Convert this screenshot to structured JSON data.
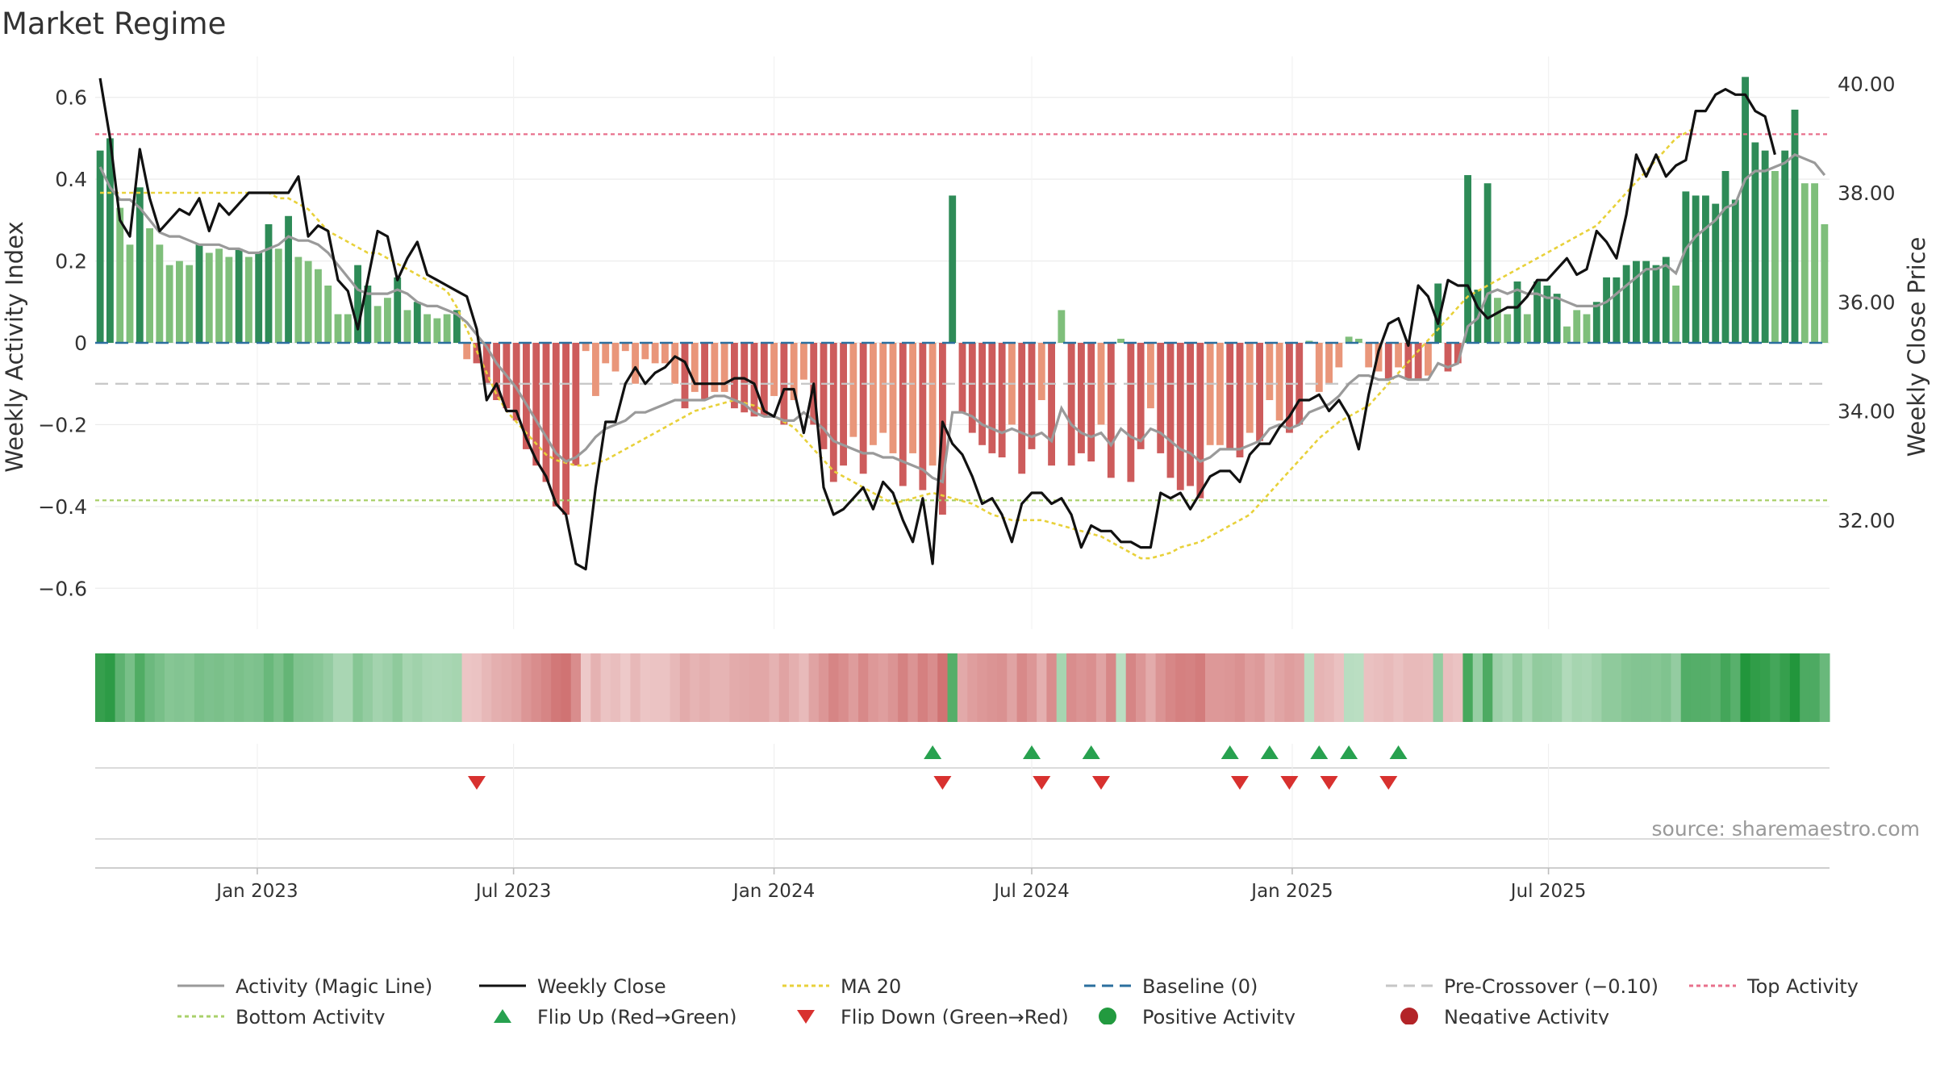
{
  "title": "Market Regime",
  "source": "source: sharemaestro.com",
  "chart_data": {
    "type": "bar+line",
    "title": "Market Regime",
    "x_start": "2022-09-12",
    "x_interval_days": 7,
    "x_ticks": [
      "Jan 2023",
      "Jul 2023",
      "Jan 2024",
      "Jul 2024",
      "Jan 2025",
      "Jul 2025"
    ],
    "left_axis": {
      "label": "Weekly Activity Index",
      "range": [
        -0.7,
        0.7
      ],
      "ticks": [
        -0.6,
        -0.4,
        -0.2,
        0,
        0.2,
        0.4,
        0.6
      ],
      "tick_labels": [
        "−0.6",
        "−0.4",
        "−0.2",
        "0",
        "0.2",
        "0.4",
        "0.6"
      ]
    },
    "right_axis": {
      "label": "Weekly Close Price",
      "range": [
        30.0,
        40.5
      ],
      "ticks": [
        32,
        34,
        36,
        38,
        40
      ],
      "tick_labels": [
        "32.00",
        "34.00",
        "36.00",
        "38.00",
        "40.00"
      ]
    },
    "activity": [
      0.47,
      0.5,
      0.33,
      0.24,
      0.38,
      0.28,
      0.24,
      0.19,
      0.2,
      0.19,
      0.24,
      0.22,
      0.23,
      0.21,
      0.23,
      0.21,
      0.22,
      0.29,
      0.23,
      0.31,
      0.21,
      0.2,
      0.18,
      0.14,
      0.07,
      0.07,
      0.19,
      0.14,
      0.09,
      0.11,
      0.16,
      0.08,
      0.1,
      0.07,
      0.06,
      0.07,
      0.08,
      -0.04,
      -0.05,
      -0.1,
      -0.14,
      -0.16,
      -0.19,
      -0.26,
      -0.3,
      -0.34,
      -0.4,
      -0.42,
      -0.3,
      -0.02,
      -0.13,
      -0.05,
      -0.07,
      -0.02,
      -0.1,
      -0.04,
      -0.05,
      -0.05,
      -0.1,
      -0.16,
      -0.12,
      -0.14,
      -0.12,
      -0.12,
      -0.16,
      -0.17,
      -0.18,
      -0.18,
      -0.13,
      -0.2,
      -0.14,
      -0.09,
      -0.2,
      -0.26,
      -0.34,
      -0.3,
      -0.23,
      -0.32,
      -0.25,
      -0.22,
      -0.27,
      -0.35,
      -0.27,
      -0.36,
      -0.3,
      -0.42,
      0.36,
      -0.17,
      -0.22,
      -0.25,
      -0.27,
      -0.28,
      -0.2,
      -0.32,
      -0.26,
      -0.14,
      -0.3,
      0.08,
      -0.3,
      -0.27,
      -0.29,
      -0.2,
      -0.33,
      0.01,
      -0.34,
      -0.26,
      -0.16,
      -0.27,
      -0.33,
      -0.36,
      -0.35,
      -0.38,
      -0.25,
      -0.25,
      -0.26,
      -0.28,
      -0.22,
      -0.24,
      -0.14,
      -0.19,
      -0.22,
      -0.2,
      0.005,
      -0.12,
      -0.1,
      -0.06,
      0.015,
      0.01,
      -0.06,
      -0.07,
      -0.09,
      -0.06,
      -0.09,
      -0.09,
      -0.08,
      0.145,
      -0.07,
      -0.05,
      0.41,
      0.13,
      0.39,
      0.11,
      0.07,
      0.15,
      0.07,
      0.15,
      0.14,
      0.12,
      0.04,
      0.08,
      0.07,
      0.1,
      0.16,
      0.16,
      0.19,
      0.2,
      0.2,
      0.19,
      0.21,
      0.14,
      0.37,
      0.36,
      0.36,
      0.34,
      0.42,
      0.35,
      0.65,
      0.49,
      0.47,
      0.42,
      0.47,
      0.57,
      0.39,
      0.39,
      0.29
    ],
    "activity_line": [
      0.43,
      0.38,
      0.35,
      0.35,
      0.33,
      0.3,
      0.27,
      0.26,
      0.26,
      0.25,
      0.24,
      0.24,
      0.24,
      0.23,
      0.23,
      0.22,
      0.22,
      0.23,
      0.24,
      0.26,
      0.25,
      0.25,
      0.24,
      0.22,
      0.19,
      0.16,
      0.13,
      0.12,
      0.12,
      0.12,
      0.13,
      0.12,
      0.1,
      0.09,
      0.09,
      0.08,
      0.07,
      0.05,
      0.02,
      -0.01,
      -0.05,
      -0.08,
      -0.11,
      -0.15,
      -0.19,
      -0.23,
      -0.27,
      -0.29,
      -0.28,
      -0.26,
      -0.23,
      -0.21,
      -0.2,
      -0.19,
      -0.17,
      -0.17,
      -0.16,
      -0.15,
      -0.14,
      -0.14,
      -0.14,
      -0.14,
      -0.13,
      -0.13,
      -0.14,
      -0.15,
      -0.17,
      -0.18,
      -0.18,
      -0.19,
      -0.19,
      -0.17,
      -0.19,
      -0.21,
      -0.24,
      -0.25,
      -0.26,
      -0.27,
      -0.27,
      -0.28,
      -0.28,
      -0.29,
      -0.3,
      -0.31,
      -0.33,
      -0.34,
      -0.17,
      -0.17,
      -0.18,
      -0.2,
      -0.21,
      -0.22,
      -0.21,
      -0.22,
      -0.23,
      -0.22,
      -0.24,
      -0.16,
      -0.2,
      -0.22,
      -0.23,
      -0.22,
      -0.25,
      -0.21,
      -0.23,
      -0.24,
      -0.21,
      -0.22,
      -0.24,
      -0.26,
      -0.27,
      -0.29,
      -0.28,
      -0.26,
      -0.26,
      -0.26,
      -0.25,
      -0.24,
      -0.21,
      -0.2,
      -0.21,
      -0.2,
      -0.17,
      -0.16,
      -0.15,
      -0.13,
      -0.1,
      -0.08,
      -0.08,
      -0.09,
      -0.09,
      -0.08,
      -0.09,
      -0.09,
      -0.09,
      -0.05,
      -0.06,
      -0.05,
      0.04,
      0.06,
      0.12,
      0.13,
      0.12,
      0.13,
      0.12,
      0.12,
      0.11,
      0.11,
      0.1,
      0.09,
      0.09,
      0.09,
      0.1,
      0.12,
      0.14,
      0.16,
      0.18,
      0.18,
      0.19,
      0.17,
      0.23,
      0.26,
      0.28,
      0.3,
      0.33,
      0.34,
      0.4,
      0.42,
      0.42,
      0.43,
      0.44,
      0.46,
      0.45,
      0.44,
      0.41
    ],
    "weekly_close": [
      40.1,
      39.0,
      37.5,
      37.2,
      38.8,
      37.9,
      37.3,
      37.5,
      37.7,
      37.6,
      37.9,
      37.3,
      37.8,
      37.6,
      37.8,
      38.0,
      38.0,
      38.0,
      38.0,
      38.0,
      38.3,
      37.2,
      37.4,
      37.3,
      36.4,
      36.2,
      35.5,
      36.4,
      37.3,
      37.2,
      36.4,
      36.8,
      37.1,
      36.5,
      36.4,
      36.3,
      36.2,
      36.1,
      35.5,
      34.2,
      34.5,
      34.0,
      34.0,
      33.5,
      33.1,
      32.8,
      32.3,
      32.1,
      31.2,
      31.1,
      32.6,
      33.8,
      33.8,
      34.5,
      34.8,
      34.5,
      34.7,
      34.8,
      35.0,
      34.9,
      34.5,
      34.5,
      34.5,
      34.5,
      34.6,
      34.6,
      34.5,
      34.0,
      33.9,
      34.4,
      34.4,
      33.6,
      34.5,
      32.6,
      32.1,
      32.2,
      32.4,
      32.6,
      32.2,
      32.7,
      32.5,
      32.0,
      31.6,
      32.4,
      31.2,
      33.8,
      33.4,
      33.2,
      32.8,
      32.3,
      32.4,
      32.1,
      31.6,
      32.3,
      32.5,
      32.5,
      32.3,
      32.4,
      32.1,
      31.5,
      31.9,
      31.8,
      31.8,
      31.6,
      31.6,
      31.5,
      31.5,
      32.5,
      32.4,
      32.5,
      32.2,
      32.5,
      32.8,
      32.9,
      32.9,
      32.7,
      33.2,
      33.4,
      33.4,
      33.7,
      33.9,
      34.2,
      34.2,
      34.3,
      34.0,
      34.2,
      33.9,
      33.3,
      34.3,
      35.1,
      35.6,
      35.7,
      35.2,
      36.3,
      36.1,
      35.6,
      36.4,
      36.3,
      36.3,
      35.9,
      35.7,
      35.8,
      35.9,
      35.9,
      36.1,
      36.4,
      36.4,
      36.6,
      36.8,
      36.5,
      36.6,
      37.3,
      37.1,
      36.8,
      37.6,
      38.7,
      38.3,
      38.7,
      38.3,
      38.5,
      38.6,
      39.5,
      39.5,
      39.8,
      39.9,
      39.8,
      39.8,
      39.5,
      39.4,
      38.7
    ],
    "ma20": [
      38.0,
      38.0,
      38.0,
      38.0,
      38.0,
      38.0,
      38.0,
      38.0,
      38.0,
      38.0,
      38.0,
      38.0,
      38.0,
      38.0,
      38.0,
      38.0,
      38.0,
      38.0,
      37.9,
      37.9,
      37.8,
      37.7,
      37.5,
      37.3,
      37.2,
      37.1,
      37.0,
      36.9,
      36.9,
      36.8,
      36.7,
      36.6,
      36.5,
      36.4,
      36.3,
      36.2,
      35.9,
      35.5,
      35.1,
      34.7,
      34.3,
      34.0,
      33.8,
      33.6,
      33.4,
      33.2,
      33.1,
      33.05,
      33.0,
      33.0,
      33.05,
      33.1,
      33.2,
      33.3,
      33.4,
      33.5,
      33.6,
      33.7,
      33.8,
      33.9,
      34.0,
      34.05,
      34.1,
      34.15,
      34.2,
      34.15,
      34.1,
      34.0,
      33.9,
      33.8,
      33.7,
      33.5,
      33.3,
      33.1,
      32.9,
      32.8,
      32.7,
      32.6,
      32.5,
      32.4,
      32.3,
      32.35,
      32.4,
      32.45,
      32.5,
      32.45,
      32.4,
      32.35,
      32.3,
      32.2,
      32.1,
      32.05,
      32.0,
      32.0,
      32.0,
      32.0,
      31.95,
      31.9,
      31.85,
      31.8,
      31.75,
      31.7,
      31.6,
      31.5,
      31.4,
      31.3,
      31.3,
      31.35,
      31.4,
      31.5,
      31.55,
      31.6,
      31.7,
      31.8,
      31.9,
      32.0,
      32.1,
      32.3,
      32.5,
      32.7,
      32.9,
      33.1,
      33.3,
      33.5,
      33.65,
      33.8,
      33.9,
      34.0,
      34.1,
      34.3,
      34.5,
      34.7,
      34.9,
      35.1,
      35.3,
      35.5,
      35.7,
      35.9,
      36.1,
      36.2,
      36.3,
      36.4,
      36.5,
      36.6,
      36.7,
      36.8,
      36.9,
      37.0,
      37.1,
      37.2,
      37.3,
      37.4,
      37.6,
      37.8,
      38.0,
      38.2,
      38.4,
      38.6,
      38.8,
      39.0,
      39.1,
      39.2
    ],
    "lines": {
      "baseline": 0,
      "pre_crossover": -0.1,
      "top_activity": 0.51,
      "bottom_activity": -0.385
    },
    "flip_up_weeks": [
      84,
      94,
      100,
      114,
      118,
      123,
      126,
      131
    ],
    "flip_down_weeks": [
      38,
      85,
      95,
      101,
      115,
      120,
      124,
      130
    ],
    "legend": [
      {
        "label": "Activity (Magic Line)",
        "kind": "line",
        "color": "#9a9a9a",
        "dash": ""
      },
      {
        "label": "Weekly Close",
        "kind": "line",
        "color": "#111111",
        "dash": ""
      },
      {
        "label": "MA 20",
        "kind": "line",
        "color": "#e8d13a",
        "dash": "5,4"
      },
      {
        "label": "Baseline (0)",
        "kind": "line",
        "color": "#2b6f9e",
        "dash": "14,8"
      },
      {
        "label": "Pre-Crossover (−0.10)",
        "kind": "line",
        "color": "#c6c6c6",
        "dash": "14,8"
      },
      {
        "label": "Top Activity",
        "kind": "line",
        "color": "#e8708c",
        "dash": "5,4"
      },
      {
        "label": "Bottom Activity",
        "kind": "line",
        "color": "#a9d06a",
        "dash": "5,4"
      },
      {
        "label": "Flip Up (Red→Green)",
        "kind": "tri-up",
        "color": "#27a14f",
        "dash": ""
      },
      {
        "label": "Flip Down (Green→Red)",
        "kind": "tri-down",
        "color": "#d8312f",
        "dash": ""
      },
      {
        "label": "Positive Activity",
        "kind": "dot",
        "color": "#229a3f",
        "dash": ""
      },
      {
        "label": "Negative Activity",
        "kind": "dot",
        "color": "#b32428",
        "dash": ""
      }
    ],
    "colors": {
      "pos_strong": "#2e8b57",
      "pos_light": "#7fbf7b",
      "neg_strong": "#cd5c5c",
      "neg_light": "#e9967a"
    }
  }
}
